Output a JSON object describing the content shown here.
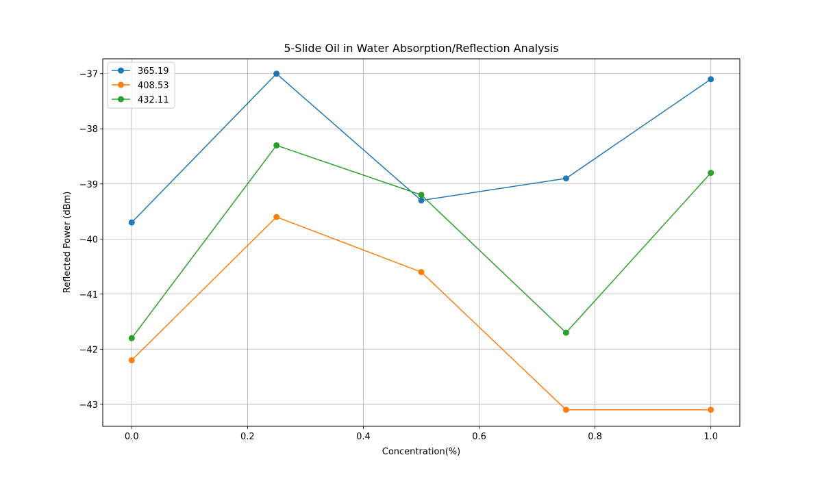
{
  "chart_data": {
    "type": "line",
    "title": "5-Slide Oil in Water Absorption/Reflection Analysis",
    "xlabel": "Concentration(%)",
    "ylabel": "Reflected Power (dBm)",
    "x": [
      0.0,
      0.25,
      0.5,
      0.75,
      1.0
    ],
    "xlim": [
      -0.05,
      1.05
    ],
    "ylim": [
      -43.4,
      -36.73
    ],
    "xticks": [
      0.0,
      0.2,
      0.4,
      0.6,
      0.8,
      1.0
    ],
    "xtick_labels": [
      "0.0",
      "0.2",
      "0.4",
      "0.6",
      "0.8",
      "1.0"
    ],
    "yticks": [
      -43,
      -42,
      -41,
      -40,
      -39,
      -38,
      -37
    ],
    "ytick_labels": [
      "−43",
      "−42",
      "−41",
      "−40",
      "−39",
      "−38",
      "−37"
    ],
    "grid": true,
    "legend_position": "upper-left",
    "markers": "circle",
    "series": [
      {
        "name": "365.19",
        "color": "#1f77b4",
        "values": [
          -39.7,
          -37.0,
          -39.3,
          -38.9,
          -37.1
        ]
      },
      {
        "name": "408.53",
        "color": "#ff7f0e",
        "values": [
          -42.2,
          -39.6,
          -40.6,
          -43.1,
          -43.1
        ]
      },
      {
        "name": "432.11",
        "color": "#2ca02c",
        "values": [
          -41.8,
          -38.3,
          -39.2,
          -41.7,
          -38.8
        ]
      }
    ]
  }
}
